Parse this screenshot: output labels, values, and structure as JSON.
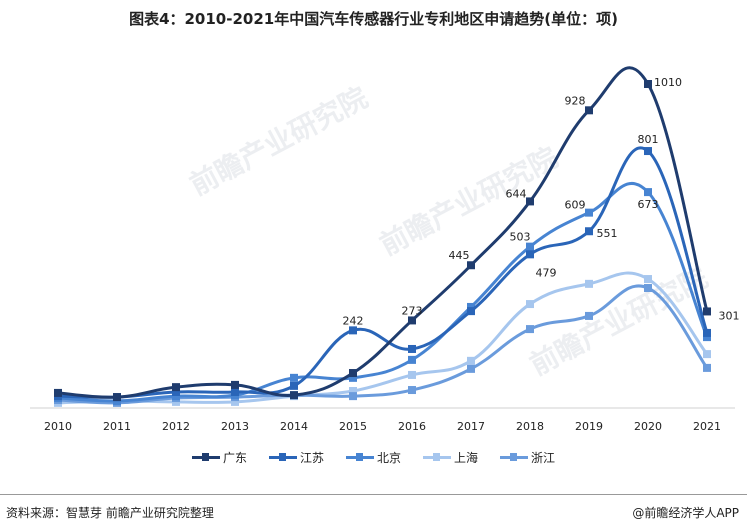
{
  "title": "图表4：2010-2021年中国汽车传感器行业专利地区申请趋势(单位：项)",
  "source": "资料来源：智慧芽 前瞻产业研究院整理",
  "brand": "@前瞻经济学人APP",
  "watermark": "前瞻产业研究院",
  "chart_data": {
    "type": "line",
    "title": "图表4：2010-2021年中国汽车传感器行业专利地区申请趋势(单位：项)",
    "categories": [
      "2010",
      "2011",
      "2012",
      "2013",
      "2014",
      "2015",
      "2016",
      "2017",
      "2018",
      "2019",
      "2020",
      "2021"
    ],
    "ylim": [
      0,
      1050
    ],
    "grid": false,
    "legend": "bottom",
    "series": [
      {
        "name": "广东",
        "color": "#1f3c6e",
        "values": [
          47,
          34,
          65,
          72,
          40,
          109,
          273,
          445,
          644,
          928,
          1010,
          301
        ],
        "labels": {
          "6": "273",
          "7": "445",
          "8": "644",
          "9": "928",
          "10": "1010",
          "11": "301"
        }
      },
      {
        "name": "江苏",
        "color": "#2a65b8",
        "values": [
          37,
          34,
          50,
          50,
          69,
          242,
          184,
          302,
          479,
          551,
          801,
          234
        ],
        "labels": {
          "5": "242",
          "8": "479",
          "9": "551",
          "10": "801"
        }
      },
      {
        "name": "北京",
        "color": "#4784d2",
        "values": [
          31,
          22,
          37,
          40,
          94,
          94,
          150,
          315,
          503,
          609,
          673,
          221
        ],
        "labels": {
          "8": "503",
          "9": "609",
          "10": "673"
        }
      },
      {
        "name": "上海",
        "color": "#a6c6ee",
        "values": [
          16,
          22,
          19,
          19,
          37,
          53,
          103,
          147,
          324,
          387,
          402,
          168
        ],
        "labels": {}
      },
      {
        "name": "浙江",
        "color": "#6a9bdc",
        "values": [
          25,
          16,
          31,
          34,
          40,
          37,
          56,
          122,
          246,
          287,
          374,
          125
        ],
        "labels": {}
      }
    ]
  }
}
